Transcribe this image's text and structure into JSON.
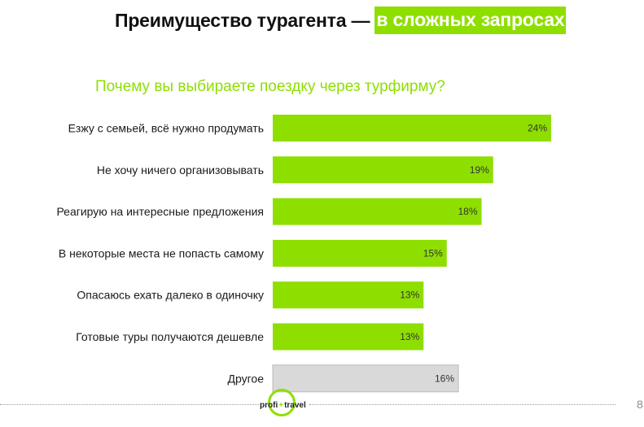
{
  "header": {
    "title_part1": "Преимущество турагента —",
    "title_part2": "в сложных запросах"
  },
  "colors": {
    "accent": "#8edf00",
    "bar_primary": "#8edf00",
    "bar_other": "#d9d9d9",
    "bar_edge": "#b9b9b9"
  },
  "chart_data": {
    "type": "bar",
    "orientation": "horizontal",
    "title": "Почему вы выбираете поездку через турфирму?",
    "categories": [
      "Езжу с семьей, всё нужно продумать",
      "Не хочу ничего организовывать",
      "Реагирую на интересные предложения",
      "В некоторые места не попасть самому",
      "Опасаюсь ехать далеко в одиночку",
      "Готовые туры получаются дешевле",
      "Другое"
    ],
    "values": [
      24,
      19,
      18,
      15,
      13,
      13,
      16
    ],
    "value_labels": [
      "24%",
      "19%",
      "18%",
      "15%",
      "13%",
      "13%",
      "16%"
    ],
    "highlight": [
      true,
      true,
      true,
      true,
      true,
      true,
      false
    ],
    "unit": "%",
    "xlim": [
      0,
      24
    ],
    "grid": false,
    "legend": "none"
  },
  "footer": {
    "logo_left": "profi",
    "logo_plus": "+",
    "logo_right": "travel",
    "page_number": "8"
  }
}
